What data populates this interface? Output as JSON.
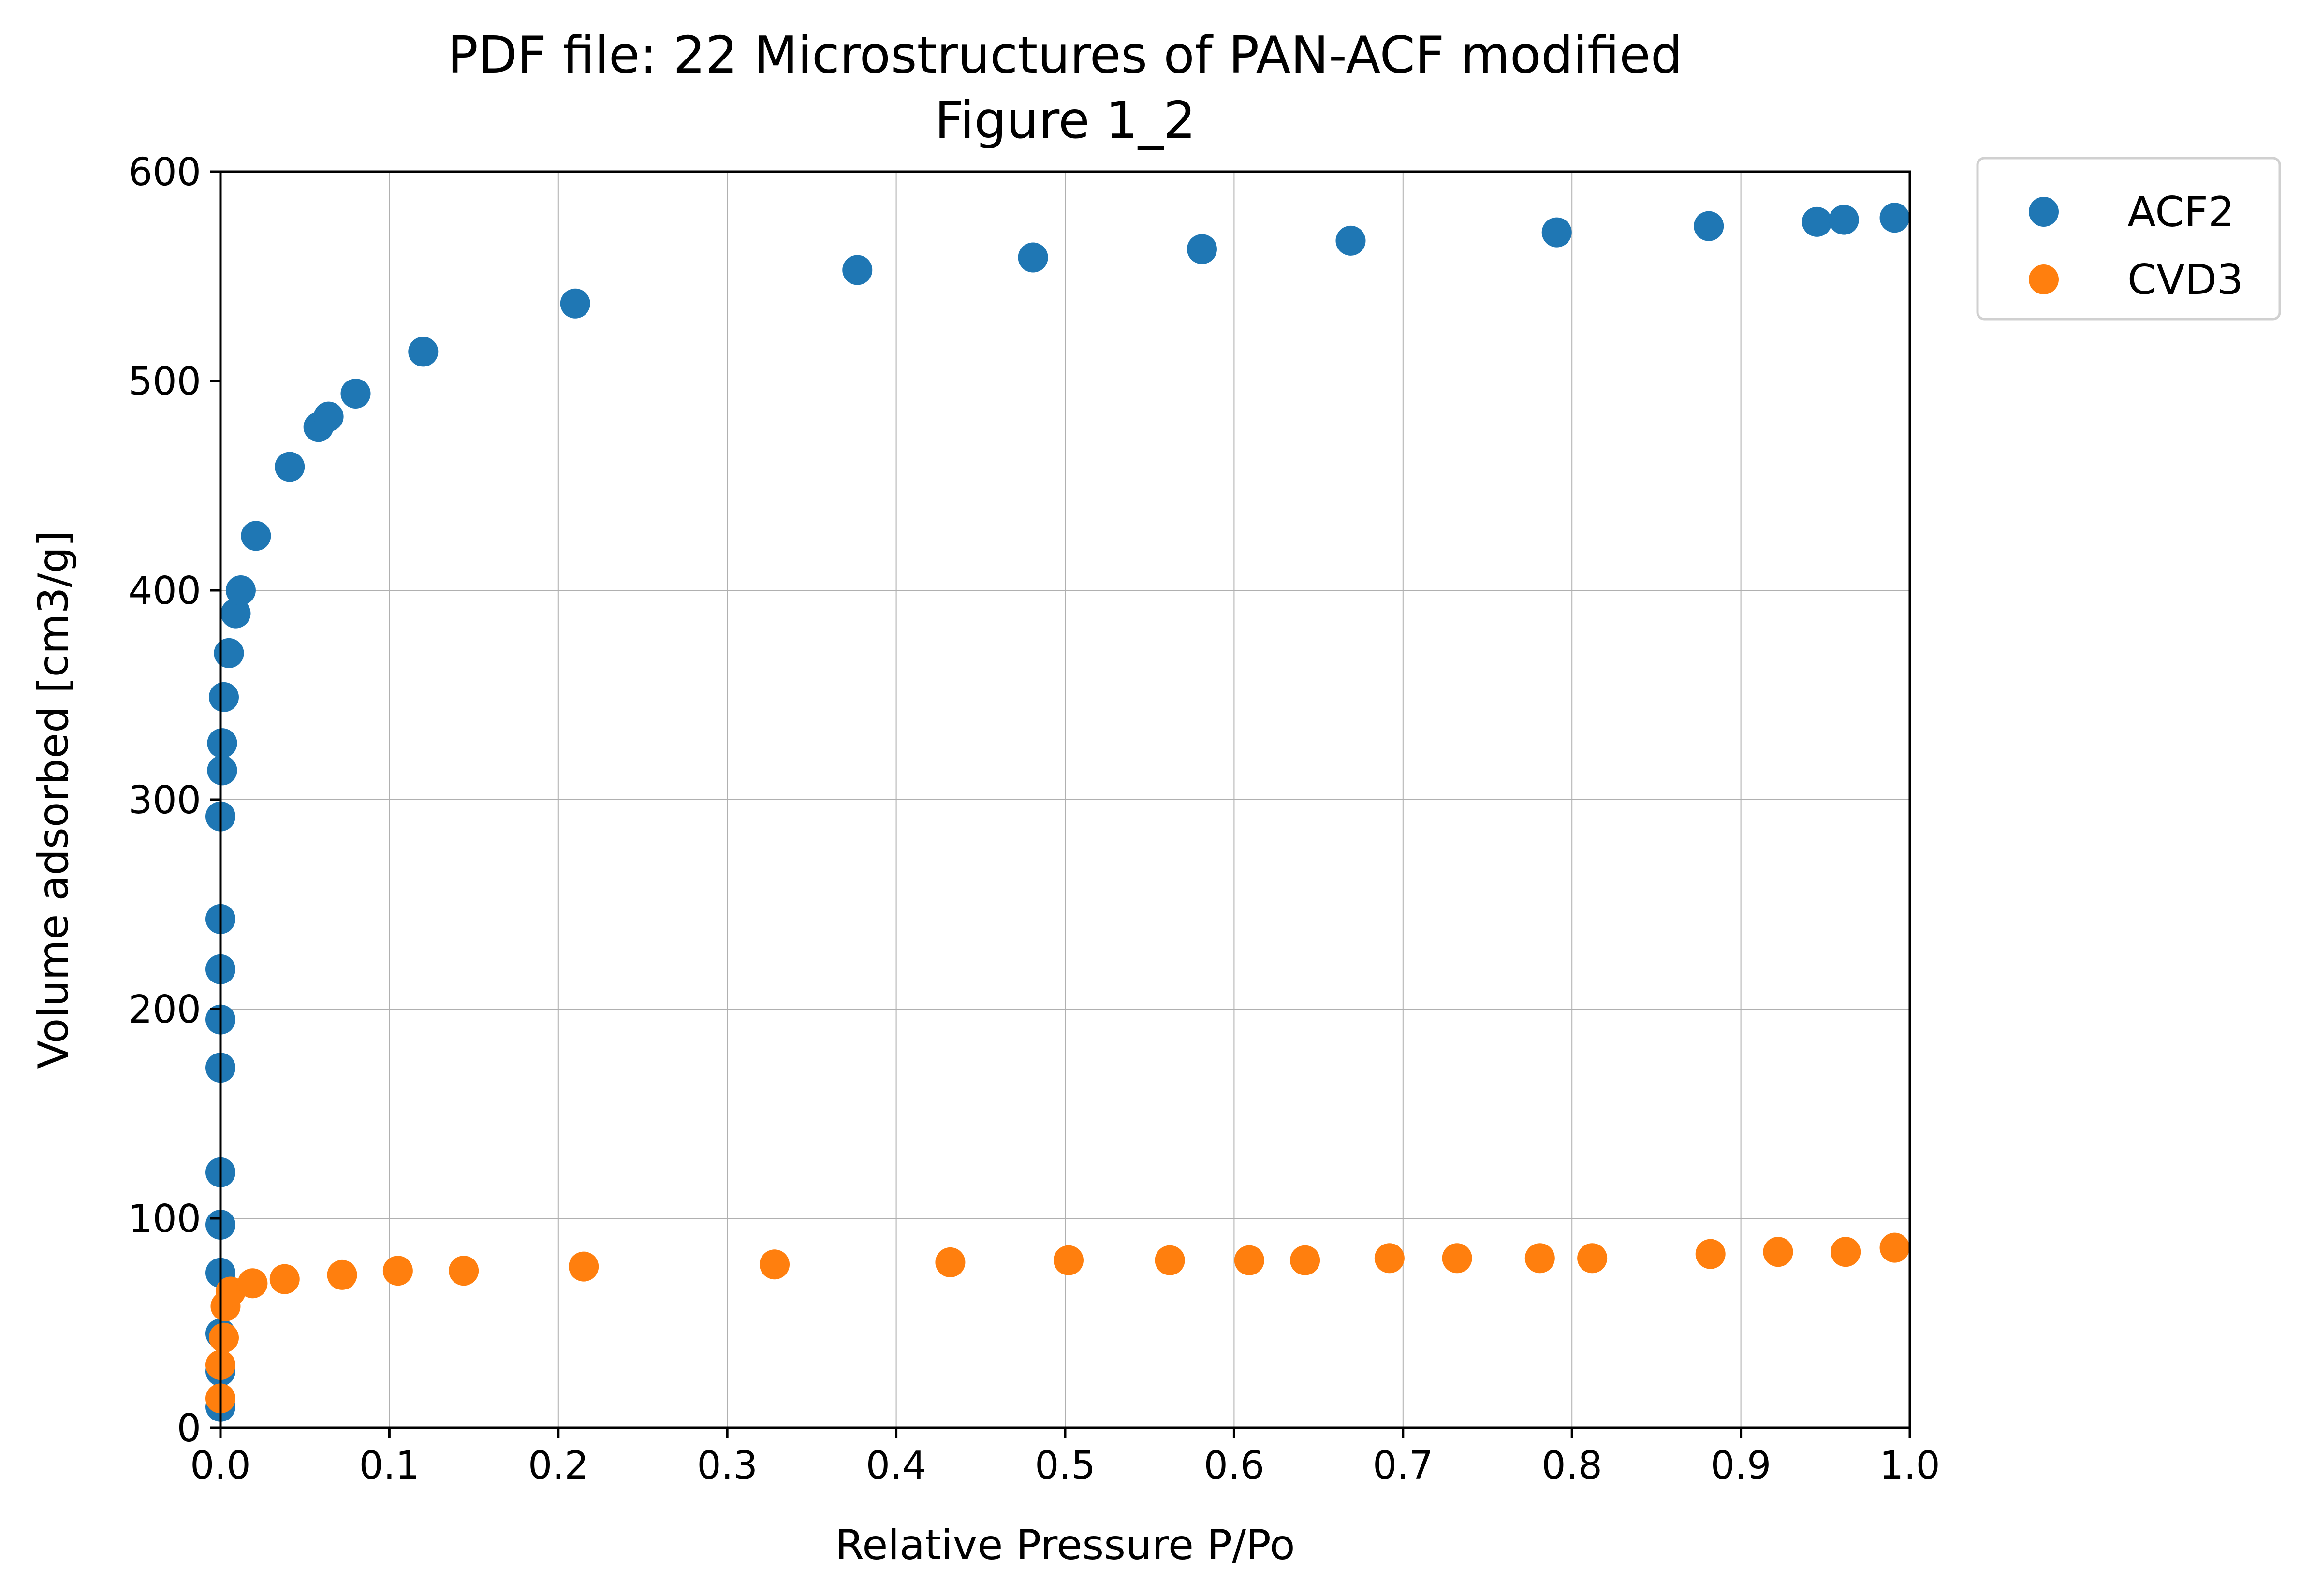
{
  "chart_data": {
    "type": "scatter",
    "title_lines": [
      "PDF file: 22 Microstructures of PAN-ACF modified",
      "Figure 1_2"
    ],
    "xlabel": "Relative Pressure P/Po",
    "ylabel": "Volume adsorbed [cm3/g]",
    "xlim": [
      0.0,
      1.0
    ],
    "ylim": [
      0,
      600
    ],
    "xticks": [
      0.0,
      0.1,
      0.2,
      0.3,
      0.4,
      0.5,
      0.6,
      0.7,
      0.8,
      0.9,
      1.0
    ],
    "xtick_labels": [
      "0.0",
      "0.1",
      "0.2",
      "0.3",
      "0.4",
      "0.5",
      "0.6",
      "0.7",
      "0.8",
      "0.9",
      "1.0"
    ],
    "yticks": [
      0,
      100,
      200,
      300,
      400,
      500,
      600
    ],
    "ytick_labels": [
      "0",
      "100",
      "200",
      "300",
      "400",
      "500",
      "600"
    ],
    "grid": true,
    "legend_position": "outside top-right",
    "series": [
      {
        "name": "ACF2",
        "color": "#1f77b4",
        "points": [
          [
            0.0,
            10
          ],
          [
            0.0,
            27
          ],
          [
            0.0,
            45
          ],
          [
            0.0,
            74
          ],
          [
            0.0,
            97
          ],
          [
            0.0,
            122
          ],
          [
            0.0,
            172
          ],
          [
            0.0,
            195
          ],
          [
            0.0,
            219
          ],
          [
            0.0,
            243
          ],
          [
            0.0,
            292
          ],
          [
            0.001,
            314
          ],
          [
            0.001,
            327
          ],
          [
            0.002,
            349
          ],
          [
            0.005,
            370
          ],
          [
            0.009,
            389
          ],
          [
            0.012,
            400
          ],
          [
            0.021,
            426
          ],
          [
            0.041,
            459
          ],
          [
            0.058,
            478
          ],
          [
            0.064,
            483
          ],
          [
            0.08,
            494
          ],
          [
            0.12,
            514
          ],
          [
            0.21,
            537
          ],
          [
            0.377,
            553
          ],
          [
            0.481,
            559
          ],
          [
            0.581,
            563
          ],
          [
            0.669,
            567
          ],
          [
            0.791,
            571
          ],
          [
            0.881,
            574
          ],
          [
            0.945,
            576
          ],
          [
            0.961,
            577
          ],
          [
            0.991,
            578
          ]
        ]
      },
      {
        "name": "CVD3",
        "color": "#ff7f0e",
        "points": [
          [
            0.0,
            14
          ],
          [
            0.0,
            30
          ],
          [
            0.002,
            43
          ],
          [
            0.003,
            58
          ],
          [
            0.006,
            65
          ],
          [
            0.019,
            69
          ],
          [
            0.038,
            71
          ],
          [
            0.072,
            73
          ],
          [
            0.105,
            75
          ],
          [
            0.144,
            75
          ],
          [
            0.215,
            77
          ],
          [
            0.328,
            78
          ],
          [
            0.432,
            79
          ],
          [
            0.502,
            80
          ],
          [
            0.562,
            80
          ],
          [
            0.609,
            80
          ],
          [
            0.642,
            80
          ],
          [
            0.692,
            81
          ],
          [
            0.732,
            81
          ],
          [
            0.781,
            81
          ],
          [
            0.812,
            81
          ],
          [
            0.882,
            83
          ],
          [
            0.922,
            84
          ],
          [
            0.962,
            84
          ],
          [
            0.991,
            86
          ]
        ]
      }
    ]
  }
}
